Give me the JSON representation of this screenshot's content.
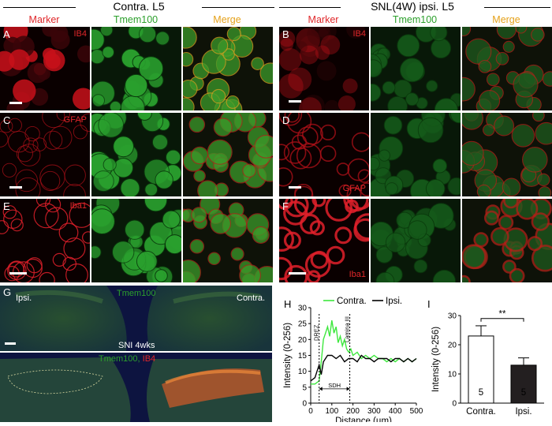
{
  "headers": {
    "left": "Contra. L5",
    "right": "SNL(4W) ipsi. L5"
  },
  "column_labels": {
    "marker": "Marker",
    "tmem": "Tmem100",
    "merge": "Merge"
  },
  "panels": {
    "A": {
      "letter": "A",
      "marker": "IB4"
    },
    "B": {
      "letter": "B",
      "marker": "IB4"
    },
    "C": {
      "letter": "C",
      "marker": "GFAP"
    },
    "D": {
      "letter": "D",
      "marker": "GFAP"
    },
    "E": {
      "letter": "E",
      "marker": "Iba1"
    },
    "F": {
      "letter": "F",
      "marker": "Iba1"
    }
  },
  "panel_g": {
    "letter": "G",
    "top_labels": {
      "left": "Ipsi.",
      "center": "Tmem100",
      "right": "Contra."
    },
    "caption": "SNI 4wks",
    "bottom_labels": {
      "tmem": "Tmem100,",
      "ib4": "IB4"
    }
  },
  "panel_h": {
    "letter": "H",
    "legend": {
      "contra": "Contra.",
      "ipsi": "Ipsi."
    },
    "annotations": {
      "drez": "DREZ",
      "lamina": "Lamina III",
      "sdh": "SDH"
    }
  },
  "panel_i": {
    "letter": "I",
    "significance": "**",
    "n_labels": [
      "5",
      "5"
    ]
  },
  "colors": {
    "red": "#e0272a",
    "green": "#2ca02c",
    "orange": "#e5a21b",
    "line_contra": "#3ee83e",
    "line_ipsi": "#000000"
  },
  "chart_data": [
    {
      "type": "line",
      "xlabel": "Distance (µm)",
      "ylabel": "Intensity (0-256)",
      "xlim": [
        0,
        500
      ],
      "ylim": [
        0,
        30
      ],
      "xticks": [
        0,
        100,
        200,
        300,
        400,
        500
      ],
      "yticks": [
        0,
        5,
        10,
        15,
        20,
        25,
        30
      ],
      "legend_position": "top",
      "series": [
        {
          "name": "Contra.",
          "x": [
            0,
            20,
            40,
            50,
            60,
            70,
            80,
            90,
            100,
            110,
            120,
            130,
            140,
            150,
            160,
            170,
            180,
            190,
            200,
            220,
            240,
            260,
            280,
            300,
            320,
            340,
            360,
            380,
            400,
            420,
            440,
            460,
            480,
            500
          ],
          "y": [
            6,
            6,
            7,
            13,
            20,
            22,
            24,
            21,
            26,
            22,
            24,
            19,
            21,
            18,
            20,
            17,
            16,
            17,
            15,
            16,
            14,
            15,
            14,
            15,
            14,
            14,
            13,
            14,
            13,
            14,
            13,
            14,
            13,
            14
          ]
        },
        {
          "name": "Ipsi.",
          "x": [
            0,
            20,
            30,
            40,
            50,
            60,
            70,
            80,
            100,
            120,
            140,
            160,
            180,
            200,
            220,
            240,
            260,
            280,
            300,
            320,
            340,
            360,
            380,
            400,
            420,
            440,
            460,
            480,
            500
          ],
          "y": [
            7,
            8,
            10,
            12,
            9,
            13,
            14,
            15,
            15,
            14,
            15,
            13,
            14,
            14,
            13,
            15,
            14,
            14,
            13,
            14,
            14,
            14,
            13,
            14,
            14,
            13,
            14,
            13,
            14
          ]
        }
      ],
      "annotations": [
        {
          "text": "DREZ",
          "x": 40
        },
        {
          "text": "Lamina III",
          "x": 185
        },
        {
          "text": "SDH",
          "x_range": [
            40,
            185
          ]
        }
      ]
    },
    {
      "type": "bar",
      "categories": [
        "Contra.",
        "Ipsi."
      ],
      "values": [
        23,
        13
      ],
      "errors": [
        3.5,
        2.5
      ],
      "ylabel": "Intensity (0-256)",
      "ylim": [
        0,
        30
      ],
      "yticks": [
        0,
        10,
        20,
        30
      ],
      "bar_colors": [
        "#ffffff",
        "#231f20"
      ],
      "significance": "**"
    }
  ]
}
